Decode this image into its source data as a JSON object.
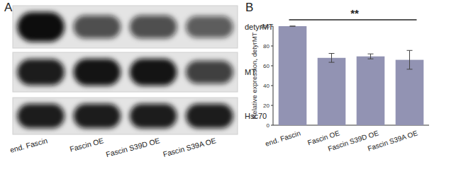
{
  "panel_labels": [
    "A",
    "B"
  ],
  "blot": {
    "rows": [
      "detyrMT",
      "MT",
      "Hsc70"
    ],
    "lanes": [
      "end. Fascin",
      "Fascin OE",
      "Fascin S39D OE",
      "Fascin S39A OE"
    ]
  },
  "chart_data": {
    "type": "bar",
    "categories": [
      "end. Fascin",
      "Fascin OE",
      "Fascin S39D OE",
      "Fascin S39A OE"
    ],
    "values": [
      100,
      68,
      69.5,
      66
    ],
    "errors": [
      0,
      4.5,
      2.5,
      9.5
    ],
    "color": "#9293b3",
    "ylabel": "Relative expression, detyrMT",
    "ylim": [
      0,
      100
    ],
    "yticks": [
      0,
      20,
      40,
      60,
      80,
      100
    ],
    "annotations": [
      "**"
    ]
  }
}
